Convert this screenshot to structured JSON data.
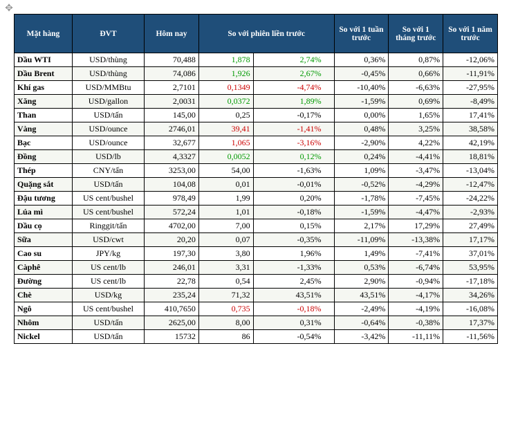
{
  "headers": {
    "name": "Mặt hàng",
    "unit": "ĐVT",
    "today": "Hôm nay",
    "vs_prev": "So với phiên liền trước",
    "vs_week": "So với 1 tuần trước",
    "vs_month": "So với 1 tháng trước",
    "vs_year": "So với 1 năm trước"
  },
  "rows": [
    {
      "name": "Dầu WTI",
      "unit": "USD/thùng",
      "today": "70,488",
      "delta": "1,878",
      "delta_cls": "green",
      "delta_pct": "2,74%",
      "delta_pct_cls": "green",
      "week": "0,36%",
      "month": "0,87%",
      "year": "-12,06%"
    },
    {
      "name": "Dầu Brent",
      "unit": "USD/thùng",
      "today": "74,086",
      "delta": "1,926",
      "delta_cls": "green",
      "delta_pct": "2,67%",
      "delta_pct_cls": "green",
      "week": "-0,45%",
      "month": "0,66%",
      "year": "-11,91%"
    },
    {
      "name": "Khí gas",
      "unit": "USD/MMBtu",
      "today": "2,7101",
      "delta": "0,1349",
      "delta_cls": "red",
      "delta_pct": "-4,74%",
      "delta_pct_cls": "red",
      "week": "-10,40%",
      "month": "-6,63%",
      "year": "-27,95%"
    },
    {
      "name": "Xăng",
      "unit": "USD/gallon",
      "today": "2,0031",
      "delta": "0,0372",
      "delta_cls": "green",
      "delta_pct": "1,89%",
      "delta_pct_cls": "green",
      "week": "-1,59%",
      "month": "0,69%",
      "year": "-8,49%"
    },
    {
      "name": "Than",
      "unit": "USD/tấn",
      "today": "145,00",
      "delta": "0,25",
      "delta_cls": "",
      "delta_pct": "-0,17%",
      "delta_pct_cls": "",
      "week": "0,00%",
      "month": "1,65%",
      "year": "17,41%"
    },
    {
      "name": "Vàng",
      "unit": "USD/ounce",
      "today": "2746,01",
      "delta": "39,41",
      "delta_cls": "red",
      "delta_pct": "-1,41%",
      "delta_pct_cls": "red",
      "week": "0,48%",
      "month": "3,25%",
      "year": "38,58%"
    },
    {
      "name": "Bạc",
      "unit": "USD/ounce",
      "today": "32,677",
      "delta": "1,065",
      "delta_cls": "red",
      "delta_pct": "-3,16%",
      "delta_pct_cls": "red",
      "week": "-2,90%",
      "month": "4,22%",
      "year": "42,19%"
    },
    {
      "name": "Đồng",
      "unit": "USD/lb",
      "today": "4,3327",
      "delta": "0,0052",
      "delta_cls": "green",
      "delta_pct": "0,12%",
      "delta_pct_cls": "green",
      "week": "0,24%",
      "month": "-4,41%",
      "year": "18,81%"
    },
    {
      "name": "Thép",
      "unit": "CNY/tấn",
      "today": "3253,00",
      "delta": "54,00",
      "delta_cls": "",
      "delta_pct": "-1,63%",
      "delta_pct_cls": "",
      "week": "1,09%",
      "month": "-3,47%",
      "year": "-13,04%"
    },
    {
      "name": "Quặng sắt",
      "unit": "USD/tấn",
      "today": "104,08",
      "delta": "0,01",
      "delta_cls": "",
      "delta_pct": "-0,01%",
      "delta_pct_cls": "",
      "week": "-0,52%",
      "month": "-4,29%",
      "year": "-12,47%"
    },
    {
      "name": "Đậu tương",
      "unit": "US cent/bushel",
      "today": "978,49",
      "delta": "1,99",
      "delta_cls": "",
      "delta_pct": "0,20%",
      "delta_pct_cls": "",
      "week": "-1,78%",
      "month": "-7,45%",
      "year": "-24,22%"
    },
    {
      "name": "Lúa mì",
      "unit": "US cent/bushel",
      "today": "572,24",
      "delta": "1,01",
      "delta_cls": "",
      "delta_pct": "-0,18%",
      "delta_pct_cls": "",
      "week": "-1,59%",
      "month": "-4,47%",
      "year": "-2,93%"
    },
    {
      "name": "Dầu cọ",
      "unit": "Ringgit/tấn",
      "today": "4702,00",
      "delta": "7,00",
      "delta_cls": "",
      "delta_pct": "0,15%",
      "delta_pct_cls": "",
      "week": "2,17%",
      "month": "17,29%",
      "year": "27,49%"
    },
    {
      "name": "Sữa",
      "unit": "USD/cwt",
      "today": "20,20",
      "delta": "0,07",
      "delta_cls": "",
      "delta_pct": "-0,35%",
      "delta_pct_cls": "",
      "week": "-11,09%",
      "month": "-13,38%",
      "year": "17,17%"
    },
    {
      "name": "Cao su",
      "unit": "JPY/kg",
      "today": "197,30",
      "delta": "3,80",
      "delta_cls": "",
      "delta_pct": "1,96%",
      "delta_pct_cls": "",
      "week": "1,49%",
      "month": "-7,41%",
      "year": "37,01%"
    },
    {
      "name": "Càphê",
      "unit": "US cent/lb",
      "today": "246,01",
      "delta": "3,31",
      "delta_cls": "",
      "delta_pct": "-1,33%",
      "delta_pct_cls": "",
      "week": "0,53%",
      "month": "-6,74%",
      "year": "53,95%"
    },
    {
      "name": "Đường",
      "unit": "US cent/lb",
      "today": "22,78",
      "delta": "0,54",
      "delta_cls": "",
      "delta_pct": "2,45%",
      "delta_pct_cls": "",
      "week": "2,90%",
      "month": "-0,94%",
      "year": "-17,18%"
    },
    {
      "name": "Chè",
      "unit": "USD/kg",
      "today": "235,24",
      "delta": "71,32",
      "delta_cls": "",
      "delta_pct": "43,51%",
      "delta_pct_cls": "",
      "week": "43,51%",
      "month": "-4,17%",
      "year": "34,26%"
    },
    {
      "name": "Ngô",
      "unit": "US cent/bushel",
      "today": "410,7650",
      "delta": "0,735",
      "delta_cls": "red",
      "delta_pct": "-0,18%",
      "delta_pct_cls": "red",
      "week": "-2,49%",
      "month": "-4,19%",
      "year": "-16,08%"
    },
    {
      "name": "Nhôm",
      "unit": "USD/tấn",
      "today": "2625,00",
      "delta": "8,00",
      "delta_cls": "",
      "delta_pct": "0,31%",
      "delta_pct_cls": "",
      "week": "-0,64%",
      "month": "-0,38%",
      "year": "17,37%"
    },
    {
      "name": "Nickel",
      "unit": "USD/tấn",
      "today": "15732",
      "delta": "86",
      "delta_cls": "",
      "delta_pct": "-0,54%",
      "delta_pct_cls": "",
      "week": "-3,42%",
      "month": "-11,11%",
      "year": "-11,56%"
    }
  ],
  "style": {
    "header_bg": "#1f4e79",
    "header_fg": "#ffffff",
    "row_odd_bg": "#ffffff",
    "row_even_bg": "#f5f7f2",
    "pos_color": "#009900",
    "neg_color": "#cc0000",
    "border_color": "#000000",
    "font_family": "Times New Roman",
    "font_size_pt": 9
  }
}
